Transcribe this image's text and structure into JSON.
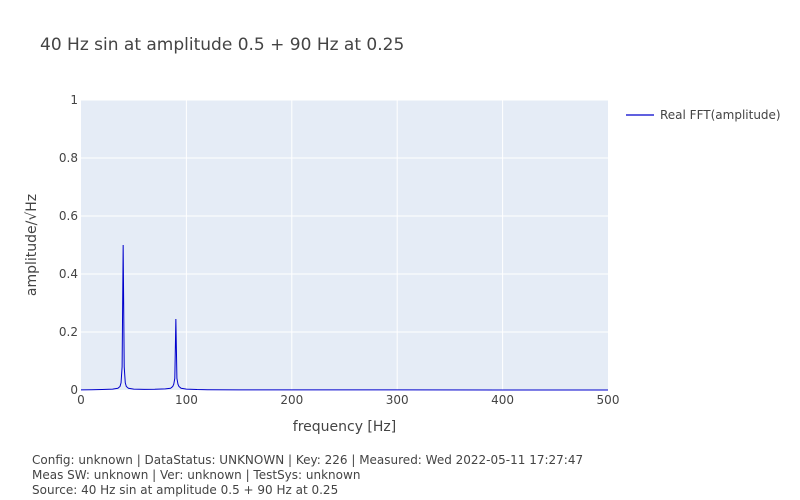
{
  "chart_data": {
    "type": "line",
    "title": "40 Hz sin at amplitude 0.5 + 90 Hz at 0.25",
    "xlabel": "frequency [Hz]",
    "ylabel": "amplitude/√Hz",
    "xlim": [
      0,
      500
    ],
    "ylim": [
      0,
      1
    ],
    "xticks": [
      "0",
      "100",
      "200",
      "300",
      "400",
      "500"
    ],
    "yticks": [
      "0",
      "0.2",
      "0.4",
      "0.6",
      "0.8",
      "1"
    ],
    "grid": true,
    "legend_position": "top-right",
    "series": [
      {
        "name": "Real FFT(amplitude)",
        "color": "#0000cc",
        "x": [
          0,
          10,
          20,
          30,
          35,
          37,
          38,
          39,
          40,
          41,
          42,
          43,
          45,
          50,
          60,
          70,
          80,
          85,
          87,
          88,
          89,
          90,
          91,
          92,
          93,
          95,
          100,
          110,
          120,
          150,
          200,
          300,
          400,
          500
        ],
        "y": [
          0.0005,
          0.0008,
          0.0015,
          0.003,
          0.006,
          0.012,
          0.025,
          0.08,
          0.5,
          0.08,
          0.025,
          0.012,
          0.006,
          0.003,
          0.002,
          0.0025,
          0.004,
          0.006,
          0.012,
          0.02,
          0.04,
          0.245,
          0.04,
          0.02,
          0.012,
          0.006,
          0.003,
          0.0015,
          0.001,
          0.0006,
          0.0004,
          0.0003,
          0.0002,
          0.0002
        ]
      }
    ]
  },
  "footer": {
    "line1": "Config: unknown | DataStatus: UNKNOWN | Key: 226 | Measured: Wed 2022-05-11 17:27:47",
    "line2": "Meas SW: unknown | Ver: unknown | TestSys: unknown",
    "line3": "Source: 40 Hz sin at amplitude 0.5 + 90 Hz at 0.25"
  }
}
